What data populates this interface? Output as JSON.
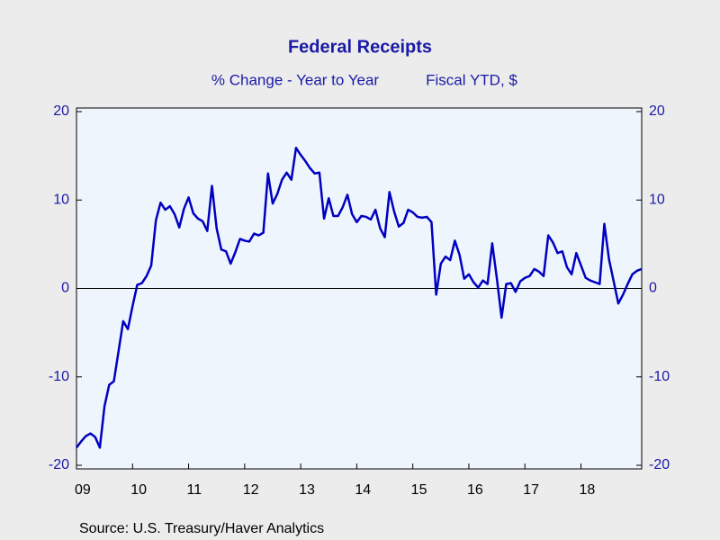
{
  "chart_data": {
    "type": "line",
    "title": "Federal Receipts",
    "subtitle": [
      "% Change - Year to Year",
      "Fiscal YTD, $"
    ],
    "source": "Source:  U.S. Treasury/Haver Analytics",
    "categories": [
      "09",
      null,
      null,
      null,
      null,
      null,
      null,
      null,
      null,
      null,
      null,
      null,
      "10",
      null,
      null,
      null,
      null,
      null,
      null,
      null,
      null,
      null,
      null,
      null,
      "11",
      null,
      null,
      null,
      null,
      null,
      null,
      null,
      null,
      null,
      null,
      null,
      "12",
      null,
      null,
      null,
      null,
      null,
      null,
      null,
      null,
      null,
      null,
      null,
      "13",
      null,
      null,
      null,
      null,
      null,
      null,
      null,
      null,
      null,
      null,
      null,
      "14",
      null,
      null,
      null,
      null,
      null,
      null,
      null,
      null,
      null,
      null,
      null,
      "15",
      null,
      null,
      null,
      null,
      null,
      null,
      null,
      null,
      null,
      null,
      null,
      "16",
      null,
      null,
      null,
      null,
      null,
      null,
      null,
      null,
      null,
      null,
      null,
      "17",
      null,
      null,
      null,
      null,
      null,
      null,
      null,
      null,
      null,
      null,
      null,
      "18",
      null,
      null,
      null,
      null,
      null,
      null,
      null,
      null,
      null,
      null,
      null,
      null,
      null
    ],
    "series": [
      {
        "name": "Federal Receipts",
        "color": "#0000c0",
        "values": [
          -18,
          -17.3,
          -16.7,
          -16.4,
          -16.8,
          -18,
          -13.3,
          -10.9,
          -10.5,
          -7.1,
          -3.7,
          -4.6,
          -2.0,
          0.4,
          0.6,
          1.4,
          2.6,
          7.7,
          9.7,
          8.9,
          9.3,
          8.4,
          6.9,
          9.0,
          10.3,
          8.5,
          7.9,
          7.6,
          6.5,
          11.6,
          6.8,
          4.4,
          4.2,
          2.8,
          4.1,
          5.6,
          5.4,
          5.3,
          6.2,
          6.0,
          6.3,
          13.0,
          9.6,
          10.7,
          12.3,
          13.1,
          12.3,
          15.9,
          15.1,
          14.4,
          13.6,
          13.0,
          13.1,
          7.9,
          10.2,
          8.2,
          8.2,
          9.2,
          10.6,
          8.4,
          7.5,
          8.2,
          8.1,
          7.8,
          8.9,
          6.8,
          5.8,
          10.9,
          8.7,
          7.0,
          7.4,
          8.9,
          8.6,
          8.1,
          8.0,
          8.1,
          7.5,
          -0.7,
          2.8,
          3.6,
          3.2,
          5.4,
          3.8,
          1.1,
          1.6,
          0.7,
          0.1,
          0.9,
          0.5,
          5.1,
          1.1,
          -3.3,
          0.5,
          0.6,
          -0.4,
          0.8,
          1.2,
          1.4,
          2.2,
          1.9,
          1.4,
          6.0,
          5.2,
          4.0,
          4.2,
          2.4,
          1.6,
          4.0,
          2.6,
          1.2,
          0.9,
          0.7,
          0.5,
          7.3,
          3.3,
          0.8,
          -1.7,
          -0.7,
          0.5,
          1.6,
          2.0,
          2.2
        ]
      }
    ],
    "ylim": [
      -20,
      20
    ],
    "yticks": [
      -20,
      -10,
      0,
      10,
      20
    ],
    "y2lim": [
      -20,
      20
    ],
    "y2ticks": [
      -20,
      -10,
      0,
      10,
      20
    ],
    "grid": false,
    "zero_line": true
  }
}
